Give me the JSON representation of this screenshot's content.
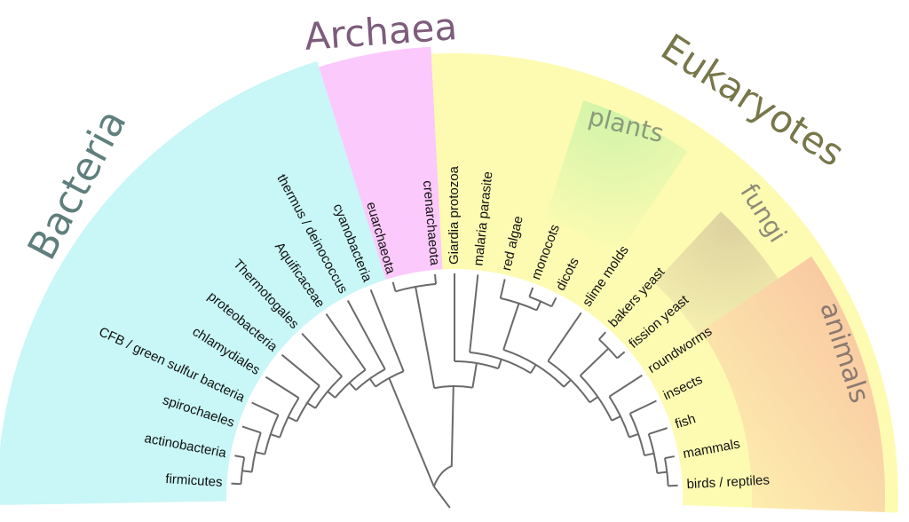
{
  "domains": {
    "bacteria": {
      "label": "Bacteria",
      "color": "#c9f6f6",
      "text_color": "#5e7f7c"
    },
    "archaea": {
      "label": "Archaea",
      "color": "#fbc9fb",
      "text_color": "#7d5c7c"
    },
    "eukaryotes": {
      "label": "Eukaryotes",
      "color": "#fdfbb2",
      "text_color": "#77774a"
    }
  },
  "subgroups": {
    "plants": {
      "label": "plants",
      "color": "#d4f4b0",
      "text_color": "#8a9a7a"
    },
    "fungi": {
      "label": "fungi",
      "color": "#e2d9a6",
      "text_color": "#8e8a78"
    },
    "animals": {
      "label": "animals",
      "color": "#f8c6a0",
      "text_color": "#8a7a72"
    }
  },
  "leaves": [
    "firmicutes",
    "actinobacteria",
    "spirochaeles",
    "CFB / green sulfur bacteria",
    "chlamydiales",
    "proteobacteria",
    "Thermotogales",
    "Aquificaceae",
    "thermus / deinococcus",
    "cyanobacteria",
    "euarchaeota",
    "crenarchaeota",
    "Giardia protozoa",
    "malaria parasite",
    "red algae",
    "monocots",
    "dicots",
    "slime molds",
    "bakers yeast",
    "fission yeast",
    "roundworms",
    "insects",
    "fish",
    "mammals",
    "birds / reptiles"
  ],
  "tree_color": "#6a6a6a"
}
